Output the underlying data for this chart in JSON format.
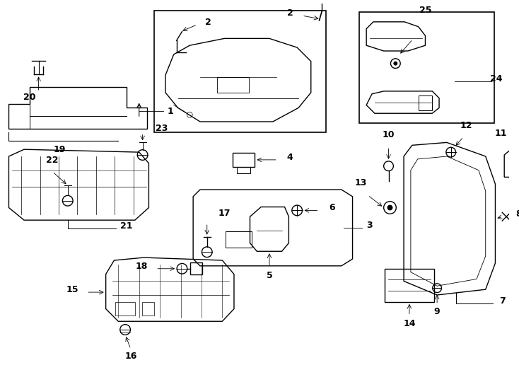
{
  "bg_color": "#ffffff",
  "line_color": "#000000",
  "fig_width": 7.34,
  "fig_height": 5.4,
  "dpi": 100
}
